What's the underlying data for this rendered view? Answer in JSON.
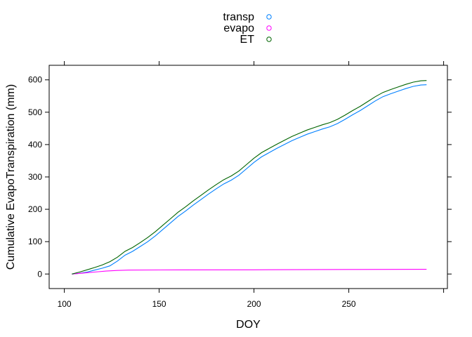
{
  "chart_data": {
    "type": "line",
    "title": "",
    "xlabel": "DOY",
    "ylabel": "Cumulative EvapoTranspiration (mm)",
    "xlim": [
      92,
      302
    ],
    "ylim": [
      -45,
      645
    ],
    "xticks": [
      100,
      150,
      200,
      250,
      300
    ],
    "xtick_labels": [
      "100",
      "150",
      "200",
      "250",
      ""
    ],
    "yticks": [
      0,
      100,
      200,
      300,
      400,
      500,
      600
    ],
    "grid": false,
    "legend": {
      "position": "top",
      "layout": "vertical"
    },
    "series": [
      {
        "name": "transp",
        "color": "#0080FF",
        "x": [
          104,
          108,
          112,
          116,
          120,
          124,
          128,
          132,
          136,
          140,
          144,
          148,
          152,
          156,
          160,
          164,
          168,
          172,
          176,
          180,
          184,
          188,
          192,
          196,
          200,
          204,
          208,
          212,
          216,
          220,
          224,
          228,
          232,
          236,
          240,
          244,
          248,
          252,
          256,
          260,
          264,
          268,
          272,
          276,
          280,
          284,
          288,
          291
        ],
        "y": [
          0,
          2,
          6,
          12,
          18,
          25,
          40,
          58,
          70,
          85,
          100,
          118,
          138,
          158,
          178,
          195,
          213,
          230,
          247,
          263,
          278,
          290,
          305,
          325,
          345,
          362,
          375,
          388,
          400,
          412,
          422,
          432,
          440,
          448,
          455,
          465,
          478,
          492,
          505,
          520,
          535,
          548,
          557,
          565,
          573,
          580,
          584,
          585
        ]
      },
      {
        "name": "evapo",
        "color": "#FF00FF",
        "x": [
          104,
          110,
          116,
          122,
          128,
          134,
          150,
          200,
          250,
          291
        ],
        "y": [
          0,
          3,
          6,
          9,
          11,
          12,
          12.5,
          13,
          14,
          14.5
        ]
      },
      {
        "name": "ET",
        "color": "#006400",
        "x": [
          104,
          108,
          112,
          116,
          120,
          124,
          128,
          132,
          136,
          140,
          144,
          148,
          152,
          156,
          160,
          164,
          168,
          172,
          176,
          180,
          184,
          188,
          192,
          196,
          200,
          204,
          208,
          212,
          216,
          220,
          224,
          228,
          232,
          236,
          240,
          244,
          248,
          252,
          256,
          260,
          264,
          268,
          272,
          276,
          280,
          284,
          288,
          291
        ],
        "y": [
          0,
          6,
          13,
          20,
          28,
          38,
          52,
          70,
          82,
          97,
          113,
          131,
          151,
          171,
          191,
          208,
          226,
          243,
          260,
          276,
          291,
          303,
          318,
          338,
          358,
          375,
          388,
          401,
          413,
          425,
          435,
          445,
          453,
          461,
          468,
          478,
          491,
          505,
          518,
          533,
          548,
          561,
          570,
          578,
          586,
          593,
          597,
          598
        ]
      }
    ]
  }
}
